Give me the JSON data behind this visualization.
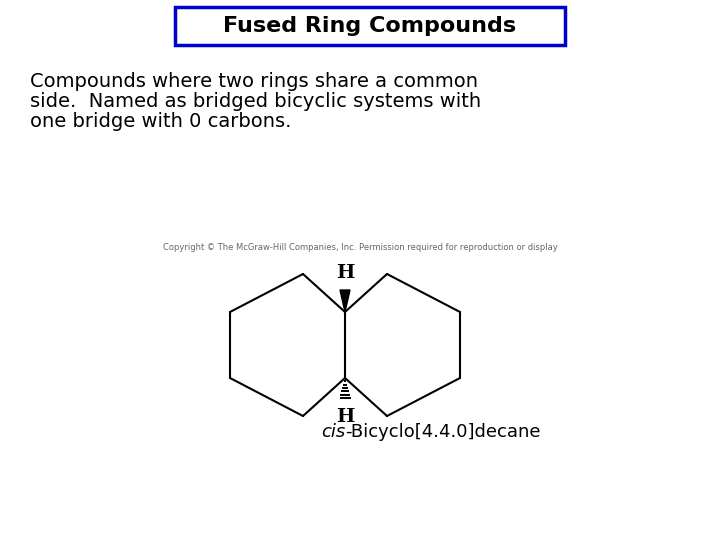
{
  "title": "Fused Ring Compounds",
  "title_fontsize": 16,
  "title_box_color": "#0000CC",
  "body_text_lines": [
    "Compounds where two rings share a common",
    "side.  Named as bridged bicyclic systems with",
    "one bridge with 0 carbons."
  ],
  "body_fontsize": 14,
  "caption_text": "Copyright © The McGraw-Hill Companies, Inc. Permission required for reproduction or display",
  "caption_fontsize": 6,
  "label_h": "H",
  "compound_label_italic": "cis",
  "compound_label_rest": "-Bicyclo[4.4.0]decane",
  "compound_label_fontsize": 13,
  "background_color": "#ffffff"
}
